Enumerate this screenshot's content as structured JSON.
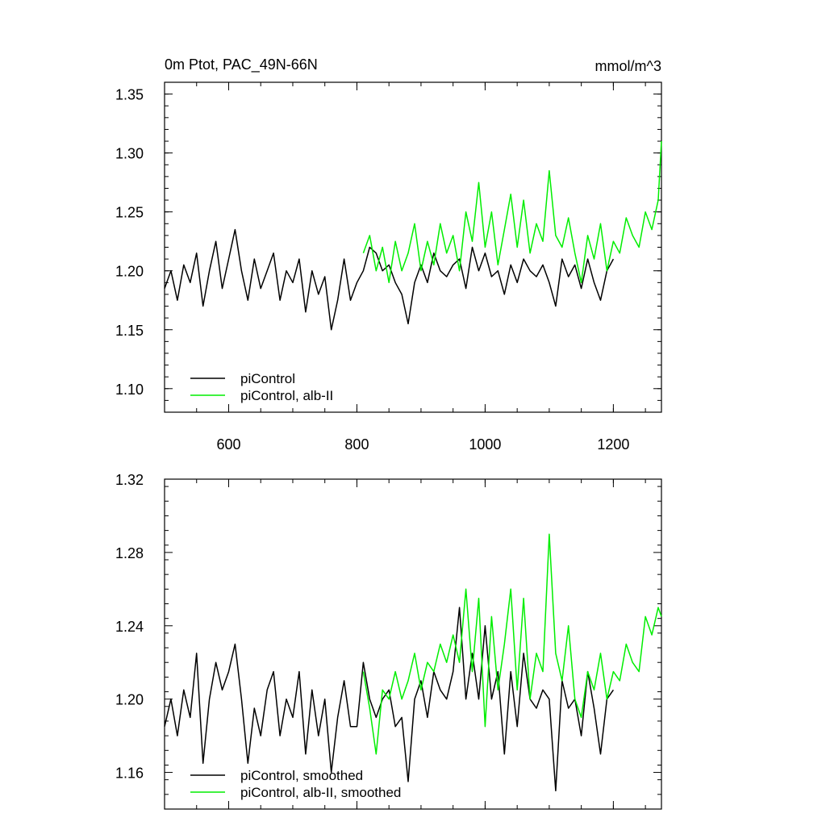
{
  "chart_data": [
    {
      "type": "line",
      "title": "0m Ptot, PAC_49N-66N",
      "units": "mmol/m^3",
      "xlim": [
        500,
        1275
      ],
      "ylim": [
        1.08,
        1.36
      ],
      "x_ticks": [
        600,
        800,
        1000,
        1200
      ],
      "x_tick_labels": [
        "600",
        "800",
        "1000",
        "1200"
      ],
      "y_ticks": [
        1.1,
        1.15,
        1.2,
        1.25,
        1.3,
        1.35
      ],
      "y_tick_labels": [
        "1.10",
        "1.15",
        "1.20",
        "1.25",
        "1.30",
        "1.35"
      ],
      "legend_position": "bottom-left",
      "series": [
        {
          "name": "piControl",
          "color": "#000000",
          "x": [
            500,
            510,
            520,
            530,
            540,
            550,
            560,
            570,
            580,
            590,
            600,
            610,
            620,
            630,
            640,
            650,
            660,
            670,
            680,
            690,
            700,
            710,
            720,
            730,
            740,
            750,
            760,
            770,
            780,
            790,
            800,
            810,
            820,
            830,
            840,
            850,
            860,
            870,
            880,
            890,
            900,
            910,
            920,
            930,
            940,
            950,
            960,
            970,
            980,
            990,
            1000,
            1010,
            1020,
            1030,
            1040,
            1050,
            1060,
            1070,
            1080,
            1090,
            1100,
            1110,
            1120,
            1130,
            1140,
            1150,
            1160,
            1170,
            1180,
            1190,
            1200
          ],
          "values": [
            1.185,
            1.2,
            1.175,
            1.205,
            1.19,
            1.215,
            1.17,
            1.2,
            1.225,
            1.185,
            1.21,
            1.235,
            1.2,
            1.175,
            1.21,
            1.185,
            1.2,
            1.215,
            1.175,
            1.2,
            1.19,
            1.21,
            1.165,
            1.2,
            1.18,
            1.195,
            1.15,
            1.175,
            1.21,
            1.175,
            1.19,
            1.2,
            1.22,
            1.215,
            1.2,
            1.205,
            1.19,
            1.18,
            1.155,
            1.19,
            1.205,
            1.19,
            1.215,
            1.2,
            1.195,
            1.205,
            1.21,
            1.185,
            1.22,
            1.2,
            1.215,
            1.195,
            1.2,
            1.18,
            1.205,
            1.19,
            1.21,
            1.2,
            1.195,
            1.205,
            1.19,
            1.17,
            1.21,
            1.195,
            1.205,
            1.185,
            1.21,
            1.19,
            1.175,
            1.2,
            1.21
          ]
        },
        {
          "name": "piControl, alb-II",
          "color": "#00ee00",
          "x": [
            810,
            820,
            830,
            840,
            850,
            860,
            870,
            880,
            890,
            900,
            910,
            920,
            930,
            940,
            950,
            960,
            970,
            980,
            990,
            1000,
            1010,
            1020,
            1030,
            1040,
            1050,
            1060,
            1070,
            1080,
            1090,
            1100,
            1110,
            1120,
            1130,
            1140,
            1150,
            1160,
            1170,
            1180,
            1190,
            1200,
            1210,
            1220,
            1230,
            1240,
            1250,
            1260,
            1270,
            1275
          ],
          "values": [
            1.215,
            1.23,
            1.2,
            1.22,
            1.19,
            1.225,
            1.2,
            1.215,
            1.24,
            1.2,
            1.225,
            1.205,
            1.24,
            1.215,
            1.23,
            1.2,
            1.25,
            1.225,
            1.275,
            1.22,
            1.25,
            1.205,
            1.235,
            1.265,
            1.22,
            1.26,
            1.215,
            1.24,
            1.225,
            1.285,
            1.23,
            1.22,
            1.245,
            1.215,
            1.19,
            1.23,
            1.21,
            1.24,
            1.2,
            1.225,
            1.215,
            1.245,
            1.23,
            1.22,
            1.25,
            1.235,
            1.26,
            1.31
          ]
        }
      ]
    },
    {
      "type": "line",
      "xlim": [
        500,
        1275
      ],
      "ylim": [
        1.14,
        1.32
      ],
      "x_ticks": [
        600,
        800,
        1000,
        1200
      ],
      "y_ticks": [
        1.16,
        1.2,
        1.24,
        1.28,
        1.32
      ],
      "y_tick_labels": [
        "1.16",
        "1.20",
        "1.24",
        "1.28",
        "1.32"
      ],
      "legend_position": "bottom-left",
      "series": [
        {
          "name": "piControl, smoothed",
          "color": "#000000",
          "x": [
            500,
            510,
            520,
            530,
            540,
            550,
            560,
            570,
            580,
            590,
            600,
            610,
            620,
            630,
            640,
            650,
            660,
            670,
            680,
            690,
            700,
            710,
            720,
            730,
            740,
            750,
            760,
            770,
            780,
            790,
            800,
            810,
            820,
            830,
            840,
            850,
            860,
            870,
            880,
            890,
            900,
            910,
            920,
            930,
            940,
            950,
            960,
            970,
            980,
            990,
            1000,
            1010,
            1020,
            1030,
            1040,
            1050,
            1060,
            1070,
            1080,
            1090,
            1100,
            1110,
            1120,
            1130,
            1140,
            1150,
            1160,
            1170,
            1180,
            1190,
            1200
          ],
          "values": [
            1.185,
            1.2,
            1.18,
            1.205,
            1.19,
            1.225,
            1.165,
            1.2,
            1.22,
            1.205,
            1.215,
            1.23,
            1.2,
            1.165,
            1.195,
            1.18,
            1.205,
            1.215,
            1.18,
            1.2,
            1.19,
            1.215,
            1.17,
            1.205,
            1.18,
            1.2,
            1.16,
            1.19,
            1.21,
            1.185,
            1.185,
            1.22,
            1.2,
            1.19,
            1.2,
            1.205,
            1.185,
            1.19,
            1.155,
            1.2,
            1.21,
            1.19,
            1.215,
            1.205,
            1.2,
            1.215,
            1.25,
            1.2,
            1.225,
            1.2,
            1.24,
            1.2,
            1.215,
            1.17,
            1.215,
            1.185,
            1.225,
            1.2,
            1.195,
            1.205,
            1.2,
            1.15,
            1.21,
            1.195,
            1.2,
            1.18,
            1.215,
            1.195,
            1.17,
            1.2,
            1.205
          ]
        },
        {
          "name": "piControl, alb-II, smoothed",
          "color": "#00ee00",
          "x": [
            810,
            820,
            830,
            840,
            850,
            860,
            870,
            880,
            890,
            900,
            910,
            920,
            930,
            940,
            950,
            960,
            970,
            980,
            990,
            1000,
            1010,
            1020,
            1030,
            1040,
            1050,
            1060,
            1070,
            1080,
            1090,
            1100,
            1110,
            1120,
            1130,
            1140,
            1150,
            1160,
            1170,
            1180,
            1190,
            1200,
            1210,
            1220,
            1230,
            1240,
            1250,
            1260,
            1270,
            1275
          ],
          "values": [
            1.215,
            1.195,
            1.17,
            1.205,
            1.2,
            1.215,
            1.2,
            1.21,
            1.225,
            1.205,
            1.22,
            1.215,
            1.23,
            1.22,
            1.235,
            1.22,
            1.26,
            1.215,
            1.255,
            1.185,
            1.245,
            1.205,
            1.23,
            1.26,
            1.205,
            1.255,
            1.2,
            1.225,
            1.215,
            1.29,
            1.225,
            1.21,
            1.24,
            1.2,
            1.19,
            1.215,
            1.205,
            1.225,
            1.2,
            1.215,
            1.21,
            1.23,
            1.22,
            1.215,
            1.245,
            1.235,
            1.25,
            1.245
          ]
        }
      ]
    }
  ]
}
